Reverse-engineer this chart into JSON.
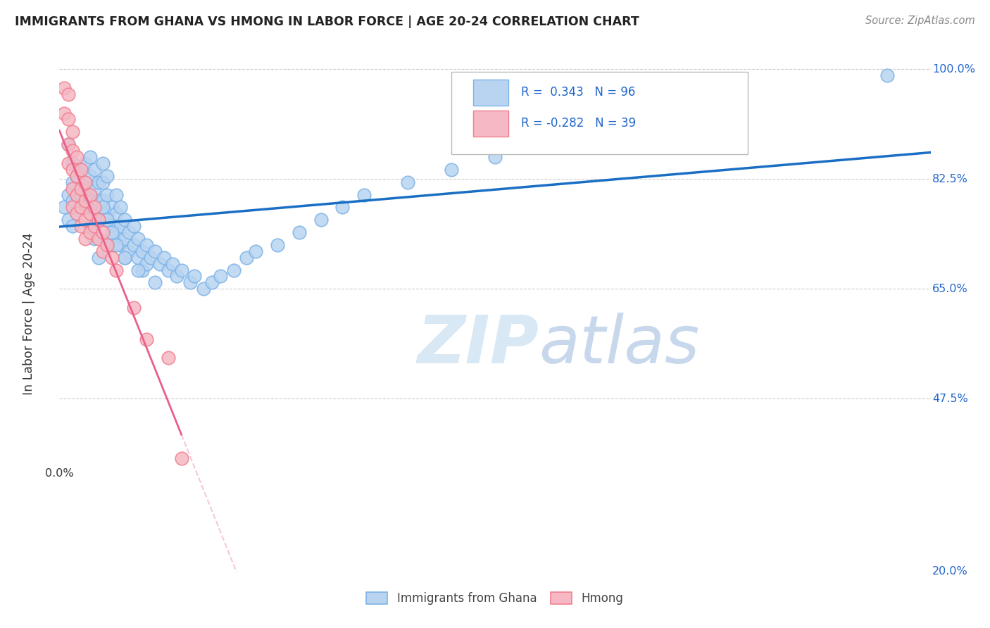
{
  "title": "IMMIGRANTS FROM GHANA VS HMONG IN LABOR FORCE | AGE 20-24 CORRELATION CHART",
  "source": "Source: ZipAtlas.com",
  "ylabel": "In Labor Force | Age 20-24",
  "ghana_R": 0.343,
  "ghana_N": 96,
  "hmong_R": -0.282,
  "hmong_N": 39,
  "ghana_color": "#7EB3E8",
  "ghana_fill": "#B8D4F0",
  "hmong_color": "#F08090",
  "hmong_fill": "#F5B8C4",
  "ghana_line_color": "#1A6FC4",
  "hmong_line_color": "#E8608A",
  "watermark_color": "#D8E8F5",
  "xlim": [
    0.0,
    0.2
  ],
  "ylim": [
    0.2,
    1.02
  ],
  "ytick_vals": [
    0.2,
    0.475,
    0.65,
    0.825,
    1.0
  ],
  "ghana_scatter_x": [
    0.001,
    0.002,
    0.002,
    0.003,
    0.003,
    0.003,
    0.004,
    0.004,
    0.004,
    0.005,
    0.005,
    0.005,
    0.006,
    0.006,
    0.006,
    0.007,
    0.007,
    0.007,
    0.007,
    0.008,
    0.008,
    0.008,
    0.009,
    0.009,
    0.009,
    0.01,
    0.01,
    0.01,
    0.01,
    0.011,
    0.011,
    0.011,
    0.012,
    0.012,
    0.012,
    0.013,
    0.013,
    0.013,
    0.014,
    0.014,
    0.014,
    0.015,
    0.015,
    0.015,
    0.016,
    0.016,
    0.017,
    0.017,
    0.018,
    0.018,
    0.019,
    0.019,
    0.02,
    0.02,
    0.021,
    0.022,
    0.023,
    0.024,
    0.025,
    0.026,
    0.027,
    0.028,
    0.03,
    0.031,
    0.033,
    0.035,
    0.037,
    0.04,
    0.043,
    0.045,
    0.05,
    0.055,
    0.06,
    0.065,
    0.07,
    0.08,
    0.09,
    0.1,
    0.11,
    0.12,
    0.002,
    0.003,
    0.004,
    0.005,
    0.006,
    0.007,
    0.008,
    0.009,
    0.01,
    0.011,
    0.012,
    0.013,
    0.015,
    0.018,
    0.022,
    0.19
  ],
  "ghana_scatter_y": [
    0.78,
    0.8,
    0.76,
    0.82,
    0.79,
    0.75,
    0.83,
    0.8,
    0.77,
    0.84,
    0.81,
    0.78,
    0.85,
    0.82,
    0.79,
    0.86,
    0.83,
    0.8,
    0.77,
    0.84,
    0.81,
    0.78,
    0.82,
    0.79,
    0.76,
    0.85,
    0.82,
    0.79,
    0.76,
    0.83,
    0.8,
    0.77,
    0.78,
    0.75,
    0.72,
    0.8,
    0.77,
    0.74,
    0.78,
    0.75,
    0.72,
    0.76,
    0.73,
    0.7,
    0.74,
    0.71,
    0.75,
    0.72,
    0.73,
    0.7,
    0.71,
    0.68,
    0.72,
    0.69,
    0.7,
    0.71,
    0.69,
    0.7,
    0.68,
    0.69,
    0.67,
    0.68,
    0.66,
    0.67,
    0.65,
    0.66,
    0.67,
    0.68,
    0.7,
    0.71,
    0.72,
    0.74,
    0.76,
    0.78,
    0.8,
    0.82,
    0.84,
    0.86,
    0.88,
    0.9,
    0.88,
    0.85,
    0.83,
    0.8,
    0.78,
    0.75,
    0.73,
    0.7,
    0.78,
    0.76,
    0.74,
    0.72,
    0.7,
    0.68,
    0.66,
    0.99
  ],
  "hmong_scatter_x": [
    0.001,
    0.001,
    0.002,
    0.002,
    0.002,
    0.002,
    0.003,
    0.003,
    0.003,
    0.003,
    0.003,
    0.004,
    0.004,
    0.004,
    0.004,
    0.005,
    0.005,
    0.005,
    0.005,
    0.006,
    0.006,
    0.006,
    0.006,
    0.007,
    0.007,
    0.007,
    0.008,
    0.008,
    0.009,
    0.009,
    0.01,
    0.01,
    0.011,
    0.012,
    0.013,
    0.017,
    0.02,
    0.025,
    0.028
  ],
  "hmong_scatter_y": [
    0.97,
    0.93,
    0.96,
    0.92,
    0.88,
    0.85,
    0.9,
    0.87,
    0.84,
    0.81,
    0.78,
    0.86,
    0.83,
    0.8,
    0.77,
    0.84,
    0.81,
    0.78,
    0.75,
    0.82,
    0.79,
    0.76,
    0.73,
    0.8,
    0.77,
    0.74,
    0.78,
    0.75,
    0.76,
    0.73,
    0.74,
    0.71,
    0.72,
    0.7,
    0.68,
    0.62,
    0.57,
    0.54,
    0.38
  ]
}
